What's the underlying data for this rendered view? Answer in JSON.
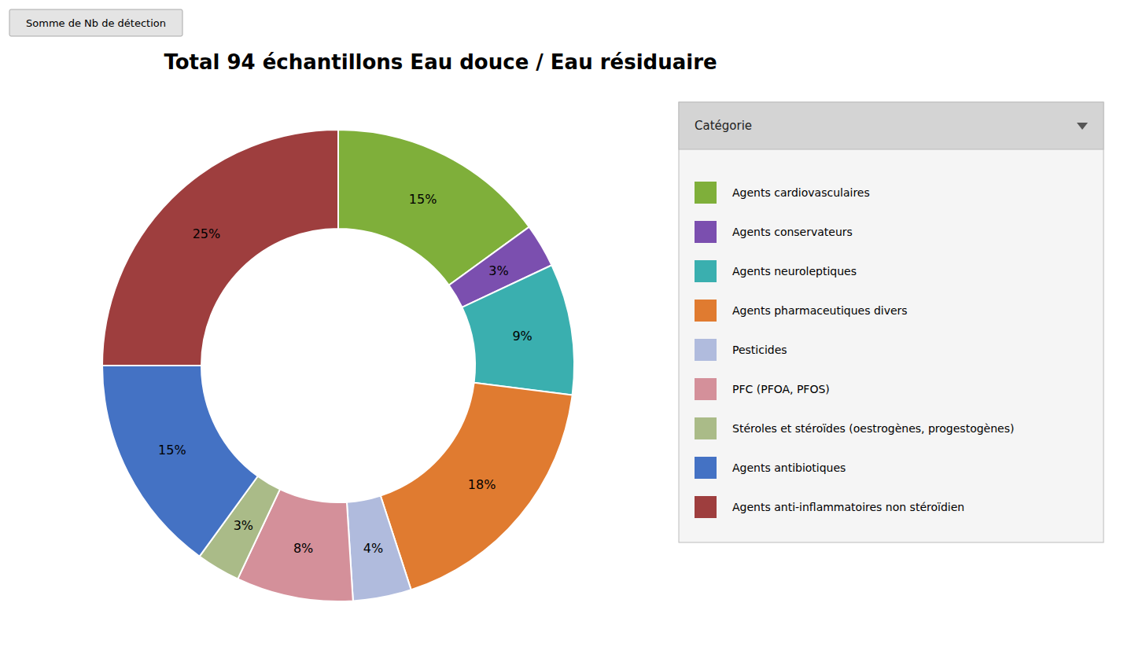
{
  "chart_data": {
    "type": "donut",
    "title": "Total 94 échantillons Eau douce / Eau résiduaire",
    "button_label": "Somme de Nb de détection",
    "legend_title": "Catégorie",
    "categories": [
      "Agents cardiovasculaires",
      "Agents conservateurs",
      "Agents neuroleptiques",
      "Agents pharmaceutiques divers",
      "Pesticides",
      "PFC (PFOA, PFOS)",
      "Stéroles et stéroïdes (oestrogènes, progestogènes)",
      "Agents antibiotiques",
      "Agents anti-inflammatoires non stéroïdien"
    ],
    "values": [
      15,
      3,
      9,
      18,
      4,
      8,
      3,
      15,
      25
    ],
    "value_labels": [
      "15%",
      "3%",
      "9%",
      "18%",
      "4%",
      "8%",
      "3%",
      "15%",
      "25%"
    ],
    "colors": [
      "#7FAF3A",
      "#7B4FAF",
      "#3AAFAF",
      "#E07B30",
      "#B0BBDD",
      "#D4909A",
      "#AABB88",
      "#4472C4",
      "#9E3E3E"
    ],
    "data_labels": true,
    "legend": "right"
  }
}
